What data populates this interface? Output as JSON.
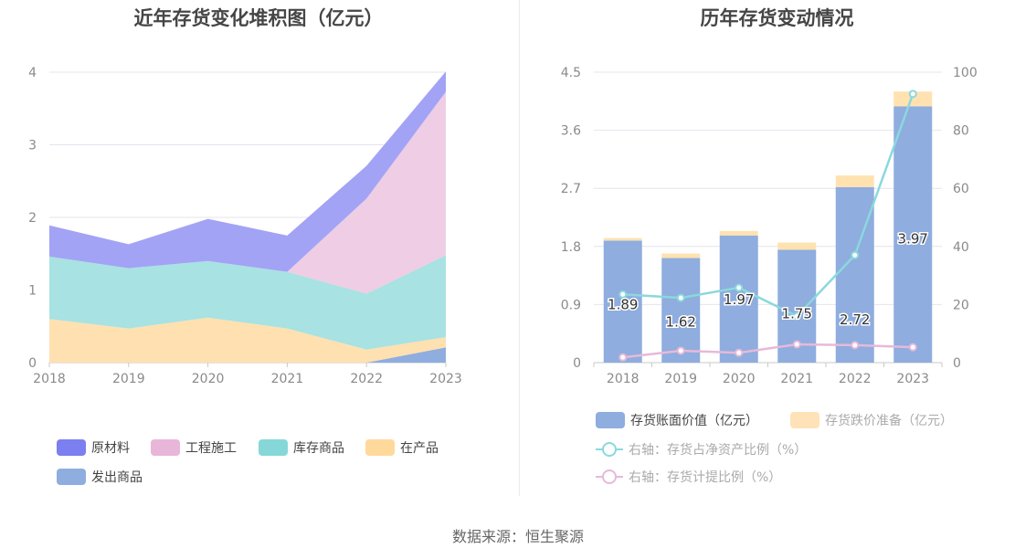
{
  "left": {
    "title": "近年存货变化堆积图（亿元）",
    "legend": [
      {
        "label": "原材料",
        "color": "#7b7ff0"
      },
      {
        "label": "工程施工",
        "color": "#e8b6d9"
      },
      {
        "label": "库存商品",
        "color": "#86d8d8"
      },
      {
        "label": "在产品",
        "color": "#ffd99c"
      },
      {
        "label": "发出商品",
        "color": "#8fadde"
      }
    ]
  },
  "right": {
    "title": "历年存货变动情况",
    "legend": [
      {
        "label": "存货账面价值（亿元）",
        "color": "#8fadde"
      },
      {
        "label": "存货跌价准备（亿元）",
        "color": "#ffe2b8"
      },
      {
        "label": "右轴：存货占净资产比例（%）",
        "color": "#8bd8dd"
      },
      {
        "label": "右轴：存货计提比例（%）",
        "color": "#e7b9d9"
      }
    ]
  },
  "source": "数据来源：恒生聚源",
  "chart_data": [
    {
      "type": "area",
      "stacked": true,
      "title": "近年存货变化堆积图（亿元）",
      "x": [
        "2018",
        "2019",
        "2020",
        "2021",
        "2022",
        "2023"
      ],
      "ylim": [
        0,
        4
      ],
      "yticks": [
        "0",
        "1",
        "2",
        "3",
        "4"
      ],
      "grid": true,
      "legend_position": "bottom",
      "series": [
        {
          "name": "发出商品",
          "color": "#8fadde",
          "values": [
            0,
            0,
            0,
            0,
            0,
            0.21
          ]
        },
        {
          "name": "在产品",
          "color": "#ffe0b0",
          "values": [
            0.6,
            0.47,
            0.62,
            0.47,
            0.18,
            0.14
          ]
        },
        {
          "name": "库存商品",
          "color": "#a8e2e2",
          "values": [
            0.86,
            0.83,
            0.78,
            0.78,
            0.77,
            1.13
          ]
        },
        {
          "name": "工程施工",
          "color": "#eecde5",
          "values": [
            0,
            0,
            0,
            0,
            1.31,
            2.25
          ]
        },
        {
          "name": "原材料",
          "color": "#a2a3f5",
          "values": [
            0.43,
            0.33,
            0.58,
            0.5,
            0.45,
            0.28
          ]
        }
      ]
    },
    {
      "type": "bar",
      "stacked": true,
      "title": "历年存货变动情况",
      "categories": [
        "2018",
        "2019",
        "2020",
        "2021",
        "2022",
        "2023"
      ],
      "ylim_left": [
        0,
        4.5
      ],
      "yticks_left": [
        "0",
        "0.9",
        "1.8",
        "2.7",
        "3.6",
        "4.5"
      ],
      "ylim_right": [
        0,
        100
      ],
      "yticks_right": [
        "0",
        "20",
        "40",
        "60",
        "80",
        "100"
      ],
      "legend_position": "bottom",
      "series": [
        {
          "name": "存货账面价值（亿元）",
          "axis": "left",
          "color": "#8fadde",
          "values": [
            1.89,
            1.62,
            1.97,
            1.75,
            2.72,
            3.97
          ],
          "labels": [
            "1.89",
            "1.62",
            "1.97",
            "1.75",
            "2.72",
            "3.97"
          ]
        },
        {
          "name": "存货跌价准备（亿元）",
          "axis": "left",
          "color": "#ffe2b0",
          "values": [
            0.04,
            0.07,
            0.07,
            0.11,
            0.18,
            0.23
          ]
        },
        {
          "name": "右轴：存货占净资产比例（%）",
          "axis": "right",
          "kind": "line",
          "color": "#8bd8dd",
          "values": [
            23.5,
            22.3,
            25.8,
            16.0,
            37.0,
            92.5
          ]
        },
        {
          "name": "右轴：存货计提比例（%）",
          "axis": "right",
          "kind": "line",
          "color": "#e7b9d9",
          "values": [
            1.8,
            4.1,
            3.4,
            6.3,
            6.0,
            5.3
          ]
        }
      ]
    }
  ]
}
